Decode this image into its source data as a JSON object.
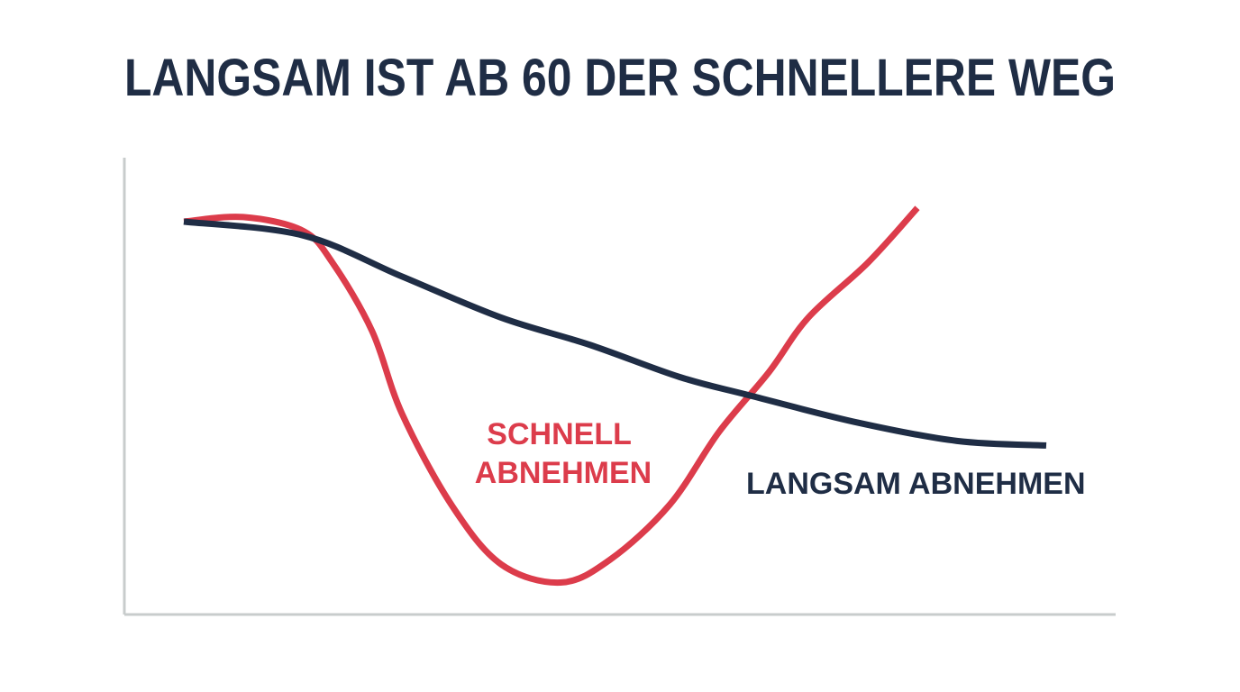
{
  "chart_data": {
    "type": "line",
    "title": "LANGSAM IST AB 60 DER SCHNELLERE WEG",
    "xlim": [
      0,
      100
    ],
    "ylim": [
      0,
      100
    ],
    "series": [
      {
        "name": "SCHNELL ABNEHMEN",
        "color": "#dc3c4b",
        "x": [
          6,
          12,
          18,
          21,
          25,
          28,
          33,
          38,
          44,
          49,
          55,
          60,
          65,
          69,
          75,
          80
        ],
        "values": [
          86,
          87,
          84,
          77,
          62,
          44,
          24,
          11,
          7,
          12,
          24,
          40,
          53,
          65,
          77,
          89
        ]
      },
      {
        "name": "LANGSAM ABNEHMEN",
        "color": "#1f2d45",
        "x": [
          6,
          18,
          28,
          38,
          47,
          56,
          63,
          74,
          84,
          93
        ],
        "values": [
          86,
          83,
          74,
          65,
          59,
          52,
          48,
          42,
          38,
          37
        ]
      }
    ]
  }
}
